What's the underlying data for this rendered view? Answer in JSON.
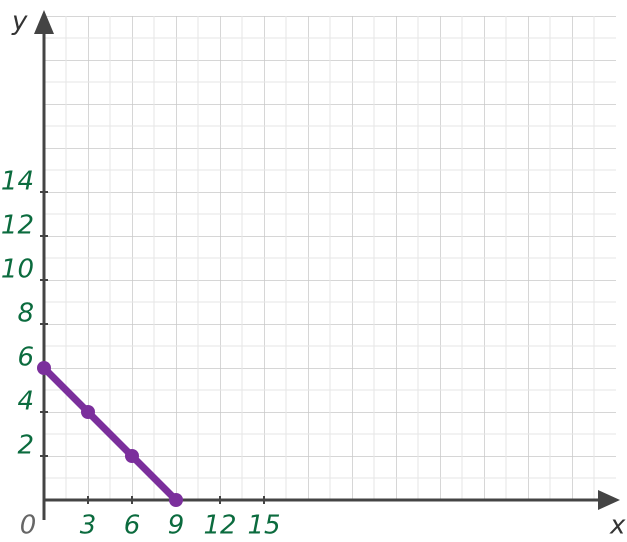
{
  "chart_data": {
    "type": "line",
    "x_label": "x",
    "y_label": "y",
    "x": [
      0,
      3,
      6,
      9
    ],
    "series": [
      {
        "color": "#7b2f9c",
        "values": [
          6,
          4,
          2,
          0
        ]
      }
    ],
    "xlim": [
      0,
      39
    ],
    "ylim": [
      0,
      22
    ],
    "xticks": [
      0,
      3,
      6,
      9,
      12,
      15
    ],
    "yticks": [
      2,
      4,
      6,
      8,
      10,
      12,
      14
    ],
    "grid": true,
    "tick_color": "#0b6b3e"
  }
}
